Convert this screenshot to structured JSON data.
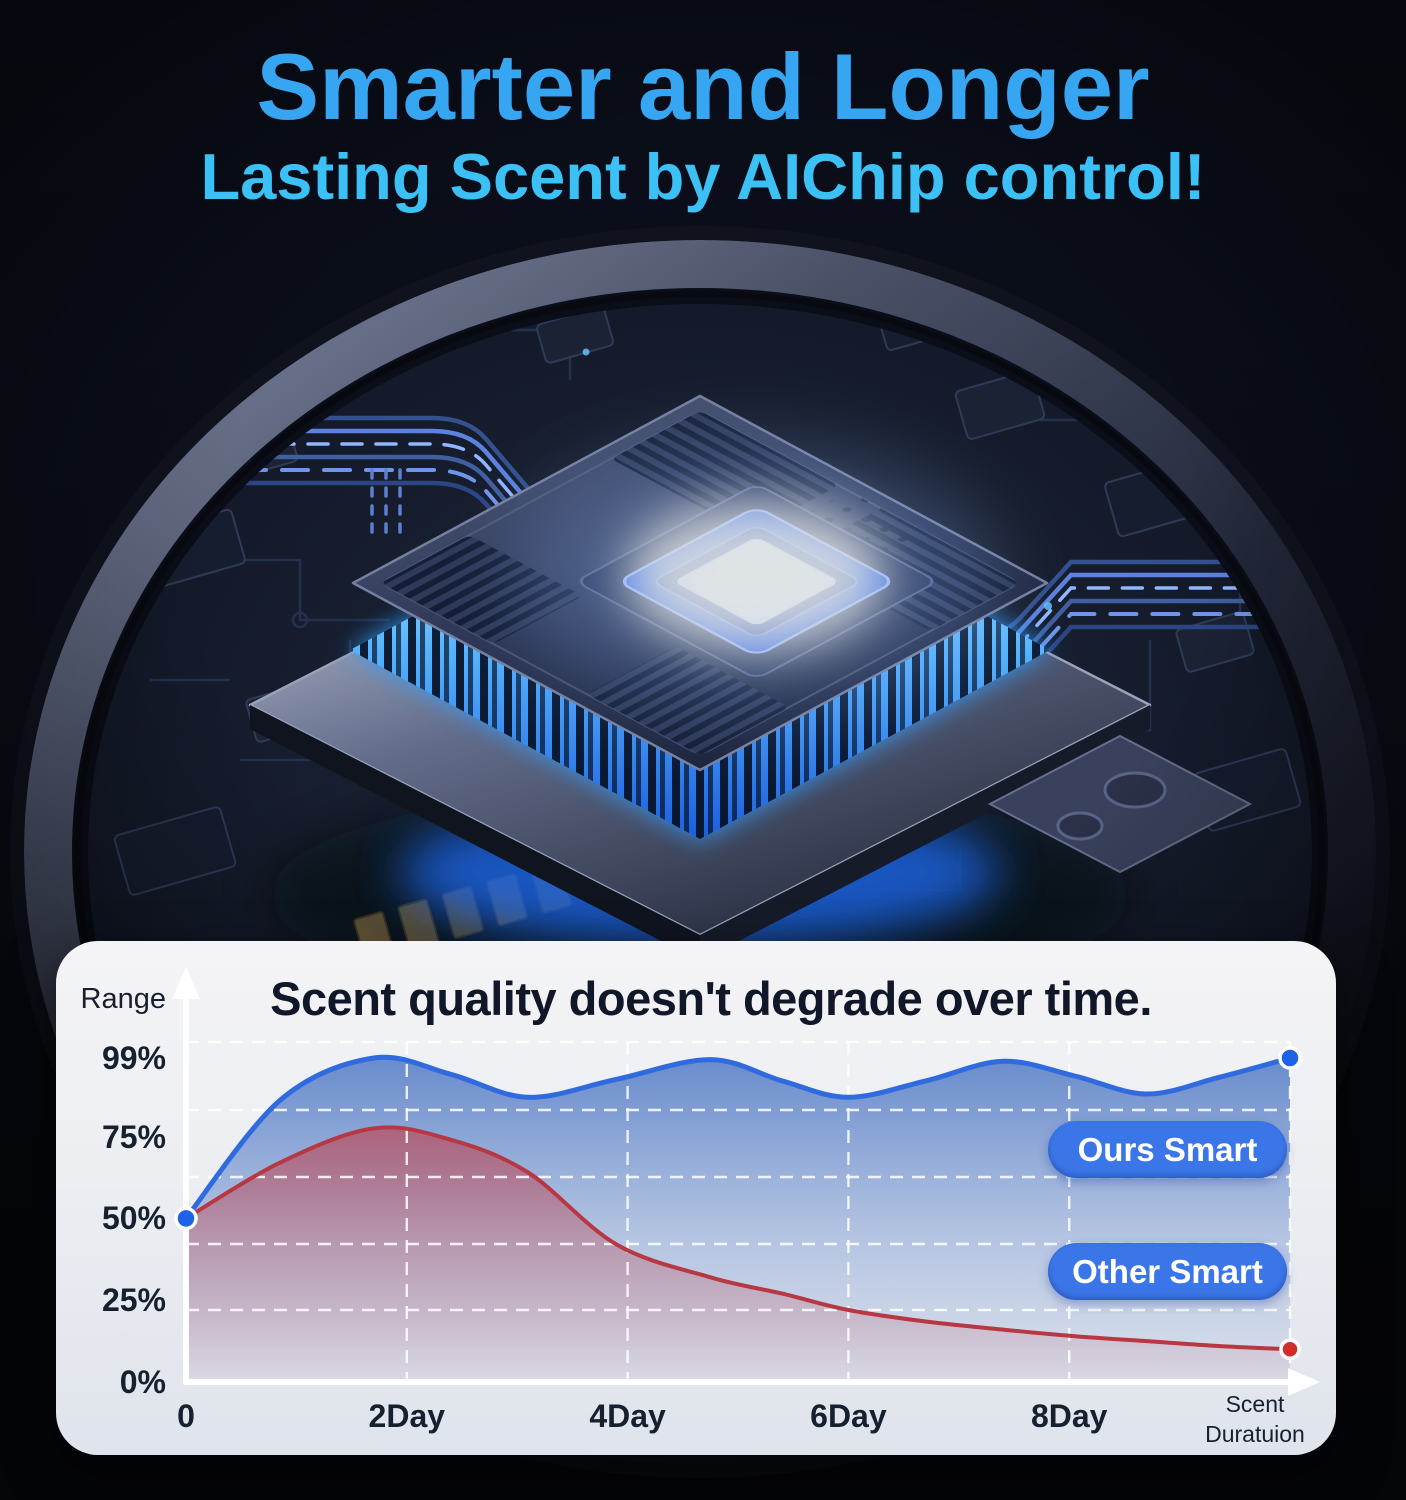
{
  "header": {
    "line1": "Smarter and Longer",
    "line2": "Lasting Scent by AIChip control!"
  },
  "chart": {
    "title": "Scent quality doesn't degrade over time.",
    "y_axis_label": "Range",
    "y_ticks": [
      "99%",
      "75%",
      "50%",
      "25%",
      "0%"
    ],
    "x_ticks": [
      "0",
      "2Day",
      "4Day",
      "6Day",
      "8Day"
    ],
    "x_end_label": {
      "line1": "Scent",
      "line2": "Duratuion"
    },
    "legend": {
      "ours": "Ours Smart",
      "other": "Other Smart"
    }
  },
  "chart_data": {
    "type": "area",
    "title": "Scent quality doesn't degrade over time.",
    "ylabel": "Range",
    "xlabel": "Scent Duratuion",
    "x_unit": "days",
    "x": [
      0,
      0.85,
      1.7,
      2.4,
      3.1,
      3.9,
      4.75,
      5.4,
      6,
      6.7,
      7.4,
      8.05,
      8.7,
      9.35,
      10
    ],
    "series": [
      {
        "name": "Ours Smart",
        "color": "#2f6bdf",
        "values": [
          50,
          86,
          99,
          94,
          87,
          92.5,
          98.5,
          92,
          87,
          92,
          98,
          93.5,
          88,
          93,
          99
        ]
      },
      {
        "name": "Other Smart",
        "color": "#b73843",
        "values": [
          50,
          67,
          77.5,
          74,
          64,
          42,
          32,
          27,
          22,
          18.5,
          16,
          14,
          12.5,
          11,
          10
        ]
      }
    ],
    "ylim": [
      0,
      100
    ],
    "xlim_days": [
      0,
      10
    ],
    "y_tick_values": [
      99,
      75,
      50,
      25,
      0
    ],
    "y_tick_labels": [
      "99%",
      "75%",
      "50%",
      "25%",
      "0%"
    ],
    "x_tick_values": [
      0,
      2,
      4,
      6,
      8
    ],
    "x_tick_labels": [
      "0",
      "2Day",
      "4Day",
      "6Day",
      "8Day"
    ],
    "grid": "dashed-white",
    "legend_position": "inside-right"
  },
  "colors": {
    "background": "#0a0d15",
    "headline1": "#36a5f2",
    "headline2": "#3cc1f6",
    "card_bg": "#eef0f3",
    "chart_title": "#101729",
    "tick_text": "#17202f",
    "axis": "#ffffff",
    "grid": "#ffffff",
    "ours_line": "#2f6bdf",
    "ours_fill": "#5d83c9",
    "ours_dot": "#1d63e8",
    "other_line": "#b73843",
    "other_fill": "#bb4a58",
    "other_dot": "#d42b2b",
    "legend_bg": "#3b76e8",
    "legend_text": "#ffffff",
    "chip_glow": "#35c0ff"
  },
  "icons": {
    "y_axis_arrow": "up-arrowhead-triangle",
    "x_axis_arrow": "right-arrowhead-triangle",
    "series_marker": "filled-circle"
  }
}
